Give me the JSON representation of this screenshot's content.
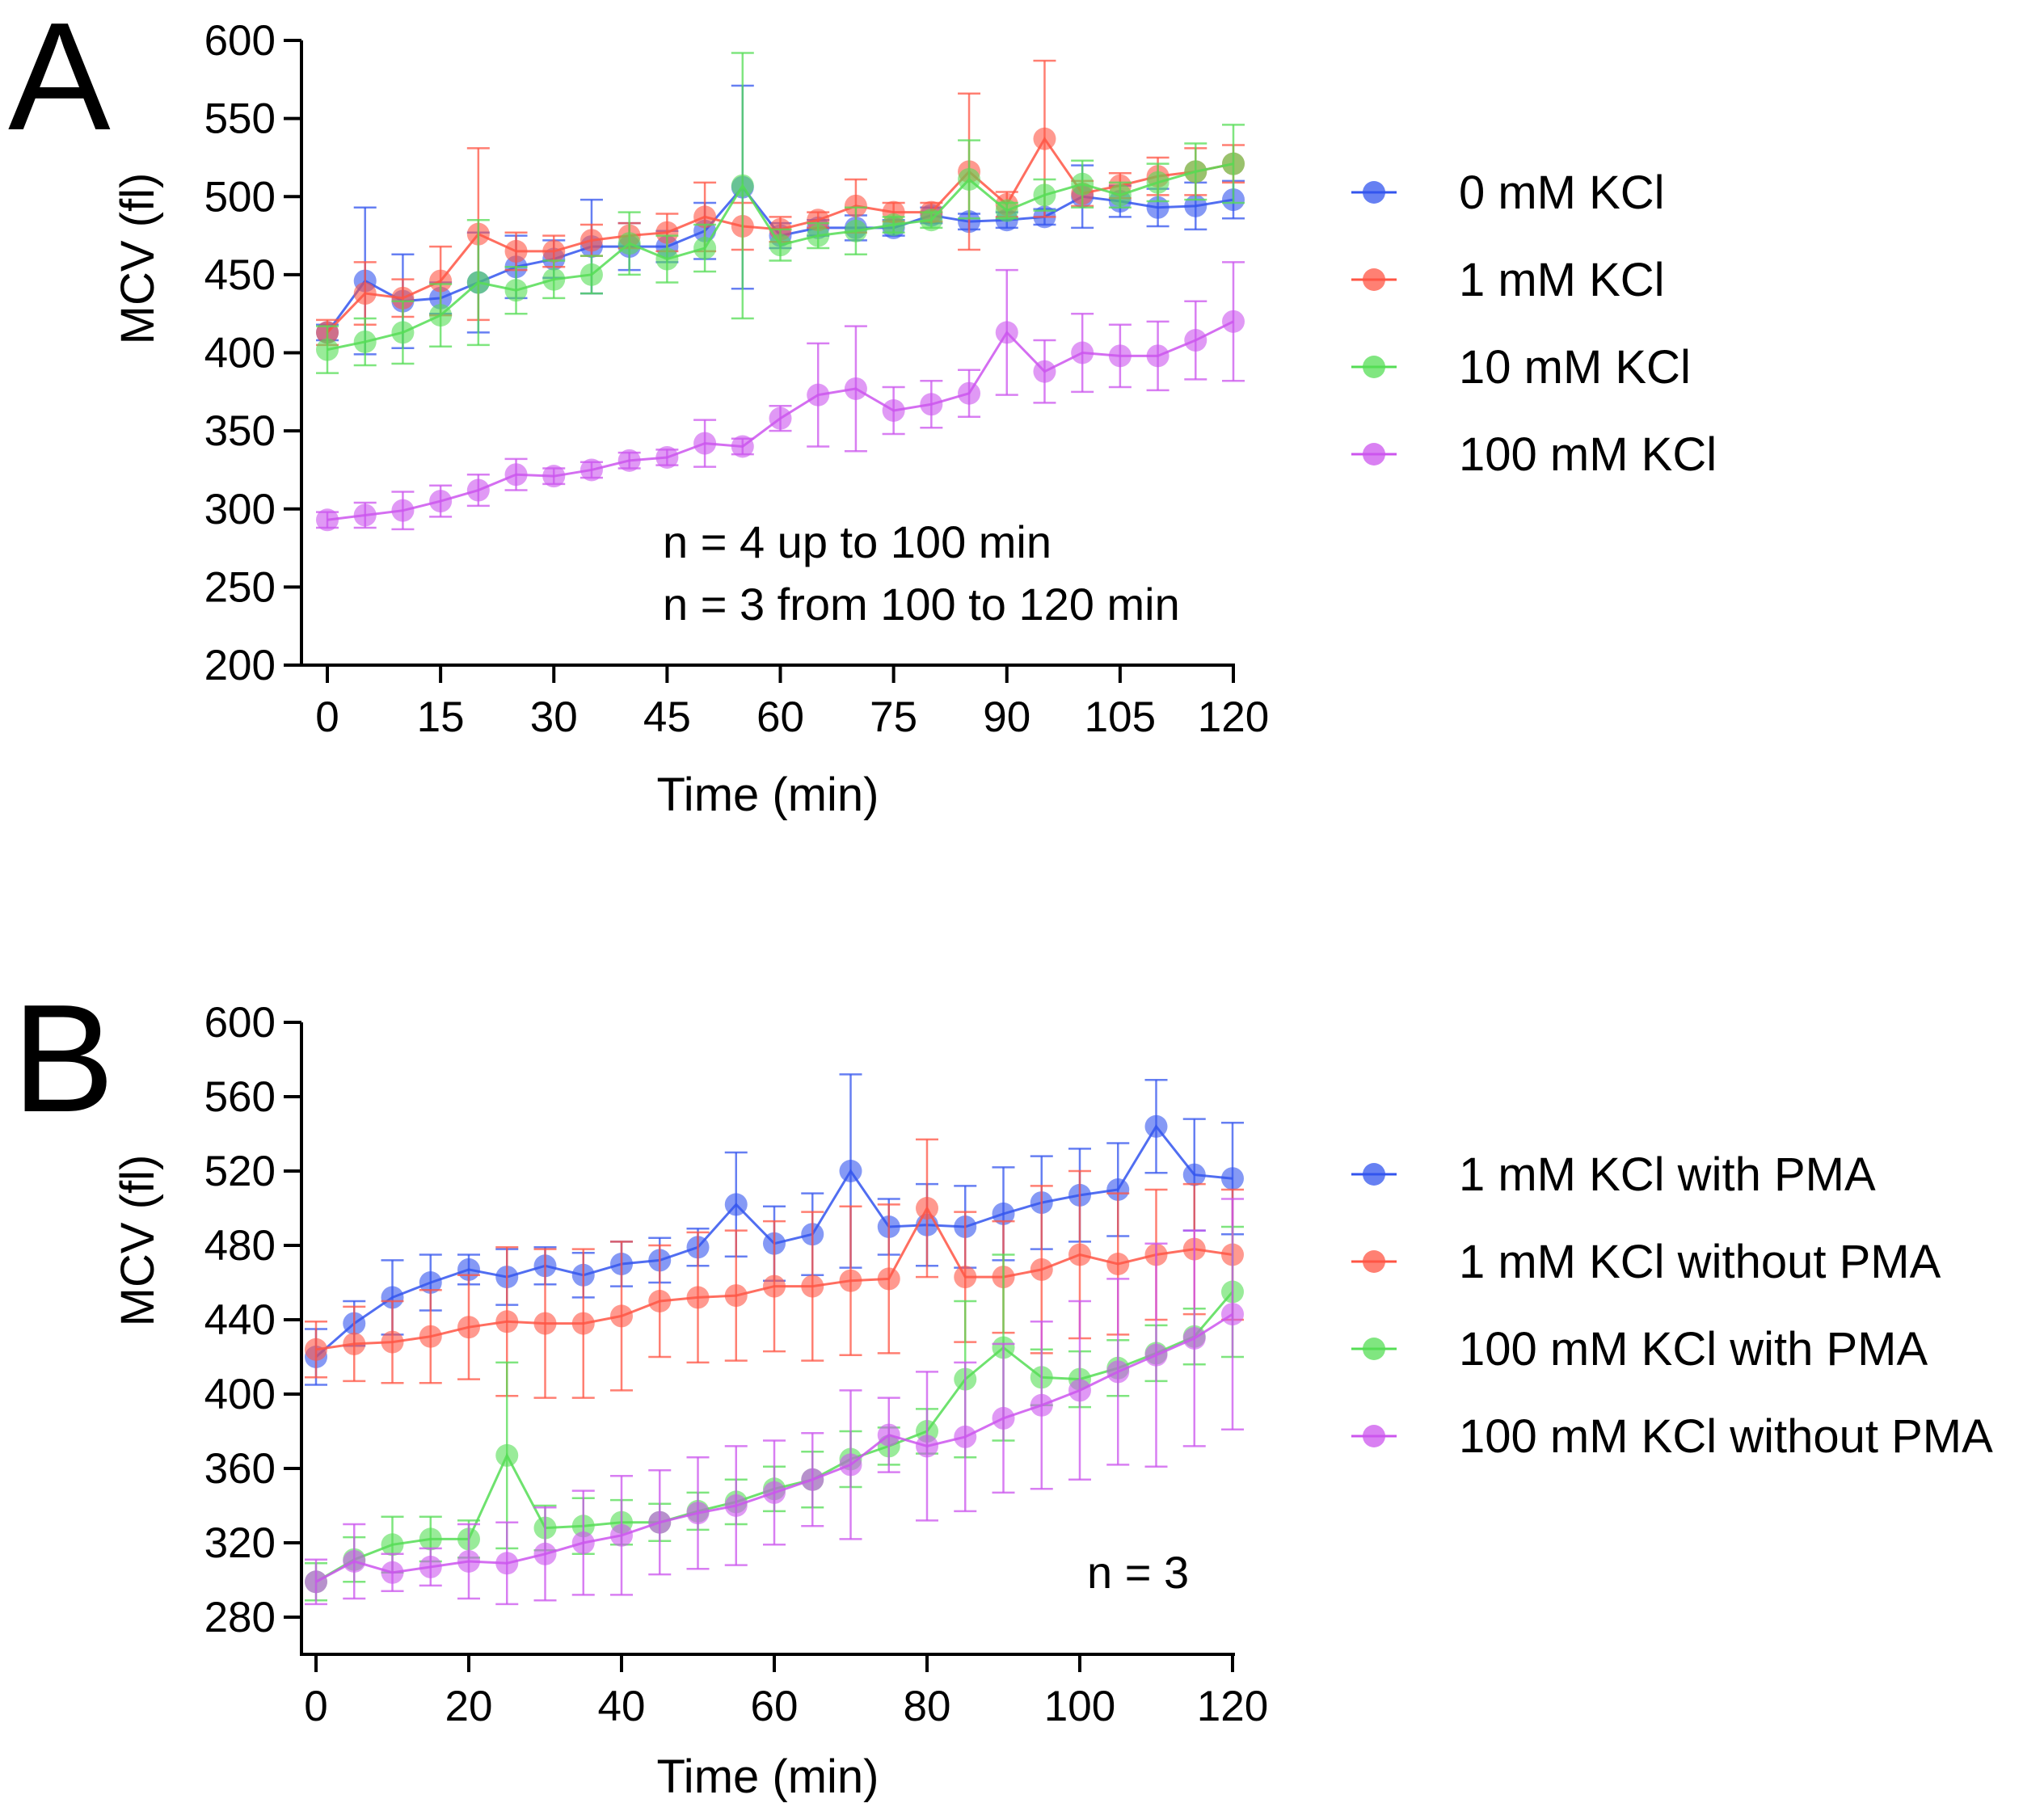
{
  "chart_data": [
    {
      "type": "line",
      "panel": "A",
      "title": "",
      "xlabel": "Time (min)",
      "ylabel": "MCV (fl)",
      "xlim": [
        -5,
        120
      ],
      "ylim": [
        200,
        600
      ],
      "xticks": [
        0,
        15,
        30,
        45,
        60,
        75,
        90,
        105,
        120
      ],
      "yticks": [
        200,
        250,
        300,
        350,
        400,
        450,
        500,
        550,
        600
      ],
      "x": [
        0,
        5,
        10,
        15,
        20,
        25,
        30,
        35,
        40,
        45,
        50,
        55,
        60,
        65,
        70,
        75,
        80,
        85,
        90,
        95,
        100,
        105,
        110,
        115,
        120
      ],
      "legend_position": "right",
      "annotations": [
        "n = 4 up to 100 min",
        "n = 3 from 100 to 120 min"
      ],
      "series": [
        {
          "name": "0 mM KCl",
          "color": "#3355ee",
          "values": [
            413,
            446,
            433,
            435,
            445,
            455,
            460,
            468,
            468,
            468,
            478,
            506,
            475,
            480,
            480,
            480,
            488,
            484,
            485,
            487,
            500,
            497,
            493,
            494,
            498
          ],
          "errors": [
            5,
            47,
            30,
            10,
            32,
            20,
            12,
            30,
            15,
            10,
            18,
            65,
            8,
            5,
            8,
            5,
            5,
            5,
            5,
            5,
            20,
            10,
            12,
            15,
            12
          ]
        },
        {
          "name": "1 mM KCl",
          "color": "#ff5544",
          "values": [
            413,
            438,
            435,
            446,
            476,
            465,
            465,
            472,
            475,
            477,
            487,
            481,
            479,
            485,
            494,
            490,
            490,
            516,
            495,
            537,
            502,
            507,
            513,
            516,
            521
          ],
          "errors": [
            8,
            20,
            12,
            22,
            55,
            12,
            10,
            10,
            8,
            12,
            22,
            15,
            8,
            5,
            17,
            6,
            6,
            50,
            8,
            50,
            8,
            8,
            12,
            15,
            12
          ]
        },
        {
          "name": "10 mM KCl",
          "color": "#55dd55",
          "values": [
            402,
            407,
            413,
            424,
            445,
            440,
            447,
            450,
            470,
            460,
            467,
            507,
            469,
            475,
            478,
            482,
            485,
            511,
            491,
            501,
            508,
            501,
            509,
            516,
            521
          ],
          "errors": [
            15,
            15,
            20,
            20,
            40,
            15,
            12,
            12,
            20,
            15,
            15,
            85,
            10,
            8,
            15,
            5,
            5,
            25,
            5,
            10,
            15,
            8,
            12,
            18,
            25
          ]
        },
        {
          "name": "100 mM KCl",
          "color": "#cc55ee",
          "values": [
            293,
            296,
            299,
            305,
            312,
            322,
            321,
            325,
            331,
            333,
            342,
            340,
            358,
            373,
            377,
            363,
            367,
            374,
            413,
            388,
            400,
            398,
            398,
            408,
            420
          ],
          "errors": [
            5,
            8,
            12,
            10,
            10,
            10,
            5,
            5,
            5,
            5,
            15,
            5,
            8,
            33,
            40,
            15,
            15,
            15,
            40,
            20,
            25,
            20,
            22,
            25,
            38
          ]
        }
      ]
    },
    {
      "type": "line",
      "panel": "B",
      "title": "",
      "xlabel": "Time (min)",
      "ylabel": "MCV (fl)",
      "xlim": [
        -2,
        120
      ],
      "ylim": [
        260,
        600
      ],
      "xticks": [
        0,
        20,
        40,
        60,
        80,
        100,
        120
      ],
      "yticks": [
        280,
        320,
        360,
        400,
        440,
        480,
        520,
        560,
        600
      ],
      "x": [
        0,
        5,
        10,
        15,
        20,
        25,
        30,
        35,
        40,
        45,
        50,
        55,
        60,
        65,
        70,
        75,
        80,
        85,
        90,
        95,
        100,
        105,
        110,
        115,
        120
      ],
      "legend_position": "right",
      "annotations": [
        "n = 3"
      ],
      "series": [
        {
          "name": "1 mM KCl with PMA",
          "color": "#3355ee",
          "values": [
            420,
            438,
            452,
            460,
            467,
            463,
            469,
            464,
            470,
            472,
            479,
            502,
            481,
            486,
            520,
            490,
            491,
            490,
            497,
            503,
            507,
            510,
            544,
            518,
            516
          ],
          "errors": [
            15,
            12,
            20,
            15,
            8,
            15,
            10,
            12,
            12,
            12,
            10,
            28,
            20,
            22,
            52,
            15,
            22,
            22,
            25,
            25,
            25,
            25,
            25,
            30,
            30
          ]
        },
        {
          "name": "1 mM KCl without PMA",
          "color": "#ff5544",
          "values": [
            424,
            427,
            428,
            431,
            436,
            439,
            438,
            438,
            442,
            450,
            452,
            453,
            458,
            458,
            461,
            462,
            500,
            463,
            463,
            467,
            475,
            470,
            475,
            478,
            475
          ],
          "errors": [
            15,
            20,
            22,
            25,
            28,
            40,
            40,
            40,
            40,
            30,
            35,
            35,
            35,
            40,
            40,
            40,
            37,
            35,
            30,
            45,
            45,
            38,
            35,
            35,
            35
          ]
        },
        {
          "name": "100 mM KCl with PMA",
          "color": "#55dd55",
          "values": [
            299,
            311,
            319,
            322,
            322,
            367,
            328,
            329,
            331,
            331,
            337,
            342,
            349,
            354,
            365,
            372,
            380,
            408,
            425,
            409,
            408,
            414,
            422,
            431,
            455
          ],
          "errors": [
            10,
            12,
            15,
            12,
            10,
            50,
            12,
            15,
            12,
            10,
            10,
            12,
            12,
            15,
            15,
            10,
            12,
            42,
            50,
            15,
            15,
            15,
            15,
            15,
            35
          ]
        },
        {
          "name": "100 mM KCl without PMA",
          "color": "#cc55ee",
          "values": [
            299,
            310,
            304,
            307,
            310,
            309,
            314,
            320,
            324,
            331,
            336,
            340,
            347,
            354,
            362,
            378,
            372,
            377,
            387,
            394,
            402,
            412,
            421,
            430,
            443
          ],
          "errors": [
            12,
            20,
            10,
            10,
            20,
            22,
            25,
            28,
            32,
            28,
            30,
            32,
            28,
            25,
            40,
            20,
            40,
            40,
            40,
            45,
            48,
            50,
            60,
            58,
            62
          ]
        }
      ]
    }
  ],
  "panels": {
    "A": {
      "letter": "A",
      "ylabel": "MCV (fl)",
      "xlabel": "Time (min)",
      "annotation_line1": "n = 4 up to 100 min",
      "annotation_line2": "n = 3 from 100 to 120 min",
      "legend": [
        "0 mM KCl",
        "1 mM KCl",
        "10 mM KCl",
        "100 mM KCl"
      ]
    },
    "B": {
      "letter": "B",
      "ylabel": "MCV (fl)",
      "xlabel": "Time (min)",
      "annotation_line1": "n = 3",
      "legend": [
        "1 mM KCl with PMA",
        "1 mM KCl without PMA",
        "100 mM KCl with PMA",
        "100 mM KCl without PMA"
      ]
    }
  }
}
